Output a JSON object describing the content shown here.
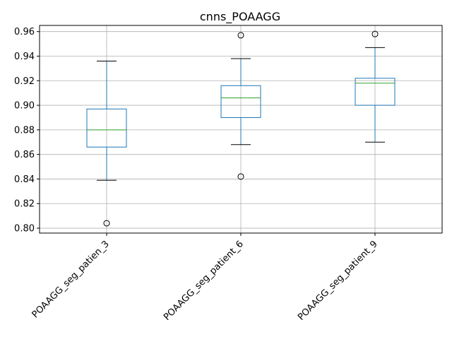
{
  "chart_data": {
    "type": "boxplot",
    "title": "cnns_POAAGG",
    "xlabel": "",
    "ylabel": "",
    "ylim": [
      0.796,
      0.965
    ],
    "yticks": [
      "0.80",
      "0.82",
      "0.84",
      "0.86",
      "0.88",
      "0.90",
      "0.92",
      "0.94",
      "0.96"
    ],
    "grid": true,
    "categories": [
      "POAAGG_seg_patien_3",
      "POAAGG_seg_patient_6",
      "POAAGG_seg_patient_9"
    ],
    "boxes": [
      {
        "category": "POAAGG_seg_patien_3",
        "whisker_low": 0.839,
        "q1": 0.866,
        "median": 0.88,
        "q3": 0.897,
        "whisker_high": 0.936,
        "outliers": [
          0.804
        ]
      },
      {
        "category": "POAAGG_seg_patient_6",
        "whisker_low": 0.868,
        "q1": 0.89,
        "median": 0.906,
        "q3": 0.916,
        "whisker_high": 0.938,
        "outliers": [
          0.957,
          0.842
        ]
      },
      {
        "category": "POAAGG_seg_patient_9",
        "whisker_low": 0.87,
        "q1": 0.9,
        "median": 0.918,
        "q3": 0.922,
        "whisker_high": 0.947,
        "outliers": [
          0.958
        ]
      }
    ],
    "colors": {
      "box": "#1f77b4",
      "median": "#2ca02c",
      "whisker_cap": "#000000",
      "grid": "#b0b0b0",
      "outlier": "#000000"
    }
  }
}
